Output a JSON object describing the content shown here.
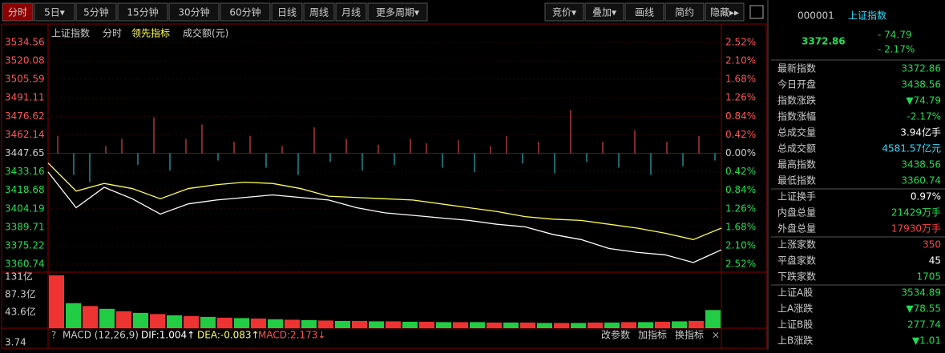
{
  "toolbar": {
    "left": [
      "分时",
      "5日▾",
      "5分钟",
      "15分钟",
      "30分钟",
      "60分钟",
      "日线",
      "周线",
      "月线",
      "更多周期▾"
    ],
    "right": [
      "竞价▾",
      "叠加▾",
      "画线",
      "简约",
      "隐藏▸▸"
    ]
  },
  "chart_header": [
    "上证指数",
    "分时",
    "领先指标",
    "成交额(元)"
  ],
  "price_axis": {
    "ticks": [
      3534.56,
      3520.08,
      3505.59,
      3491.11,
      3476.62,
      3462.14,
      3447.65,
      3433.16,
      3418.68,
      3404.19,
      3389.71,
      3375.22,
      3360.74
    ],
    "pct_labels": [
      "2.52%",
      "2.10%",
      "1.68%",
      "1.26%",
      "0.84%",
      "0.42%",
      "0.00%",
      "0.42%",
      "0.84%",
      "1.26%",
      "1.68%",
      "2.10%",
      "2.52%"
    ]
  },
  "price_line": [
    3433,
    3405,
    3421,
    3412,
    3400,
    3408,
    3411,
    3413,
    3415,
    3413,
    3411,
    3405,
    3401,
    3399,
    3397,
    3395,
    3392,
    3390,
    3384,
    3380,
    3373,
    3370,
    3368,
    3362,
    3372
  ],
  "average_line": [
    3440,
    3418,
    3424,
    3420,
    3412,
    3420,
    3423,
    3425,
    3424,
    3420,
    3414,
    3413,
    3412,
    3411,
    3408,
    3405,
    3402,
    3398,
    3396,
    3395,
    3392,
    3389,
    3385,
    3380,
    3389
  ],
  "lead_indicator": [
    1.2,
    -1.5,
    -2,
    0.5,
    1,
    -0.8,
    2.5,
    -1.2,
    1,
    2,
    -0.5,
    0.8,
    1.2,
    -1,
    0.5,
    -1.5,
    1.8,
    -0.6,
    1,
    -1.2,
    0.6,
    -0.8,
    1,
    0.7,
    -1,
    0.9,
    -1.3,
    0.5,
    1.2,
    -0.7,
    0.8,
    -1.4,
    3,
    -0.6,
    0.8,
    -1,
    1.6,
    -1.5,
    0.8,
    -0.9,
    1.2,
    -0.5
  ],
  "volume_axis": [
    "131亿",
    "87.3亿",
    "43.6亿"
  ],
  "volume": [
    131,
    62,
    55,
    48,
    42,
    38,
    35,
    32,
    30,
    28,
    26,
    25,
    24,
    22,
    21,
    20,
    19,
    18,
    18,
    17,
    17,
    16,
    16,
    15,
    15,
    15,
    14,
    14,
    14,
    13,
    13,
    13,
    14,
    14,
    15,
    15,
    16,
    17,
    18,
    45
  ],
  "macd_bar": {
    "help": "?",
    "name": "MACD (12,26,9)",
    "dif": "DIF:1.004↑",
    "dea": "DEA:-0.083↑",
    "macd": "MACD:2.173↓",
    "buttons": [
      "改参数",
      "加指标",
      "换指标"
    ],
    "close": "×",
    "bottom_label": "3.74"
  },
  "quote": {
    "code": "000001",
    "name": "上证指数",
    "price": "3372.86",
    "change": "- 74.79",
    "change_pct": "- 2.17%"
  },
  "rows": [
    {
      "label": "最新指数",
      "value": "3372.86",
      "color": "#22dd55"
    },
    {
      "label": "今日开盘",
      "value": "3438.56",
      "color": "#22dd55"
    },
    {
      "label": "指数涨跌",
      "value": "▼74.79",
      "color": "#22dd55"
    },
    {
      "label": "指数涨幅",
      "value": "-2.17%",
      "color": "#22dd55"
    },
    {
      "label": "总成交量",
      "value": "3.94亿手",
      "color": "#ffffff"
    },
    {
      "label": "总成交额",
      "value": "4581.57亿元",
      "color": "#33ddff"
    },
    {
      "label": "最高指数",
      "value": "3438.56",
      "color": "#22dd55"
    },
    {
      "label": "最低指数",
      "value": "3360.74",
      "color": "#22dd55"
    },
    {
      "label": "上证换手",
      "value": "0.97%",
      "color": "#ffffff"
    },
    {
      "label": "内盘总量",
      "value": "21429万手",
      "color": "#22dd55"
    },
    {
      "label": "外盘总量",
      "value": "17930万手",
      "color": "#ff4444"
    },
    {
      "label": "上涨家数",
      "value": "350",
      "color": "#ff4444"
    },
    {
      "label": "平盘家数",
      "value": "45",
      "color": "#ffffff"
    },
    {
      "label": "下跌家数",
      "value": "1705",
      "color": "#22dd55"
    },
    {
      "label": "上证A股",
      "value": "3534.89",
      "color": "#22dd55"
    },
    {
      "label": "上A涨跌",
      "value": "▼78.55",
      "color": "#22dd55"
    },
    {
      "label": "上证B股",
      "value": "277.74",
      "color": "#22dd55"
    },
    {
      "label": "上B涨跌",
      "value": "▼1.01",
      "color": "#22dd55"
    }
  ]
}
